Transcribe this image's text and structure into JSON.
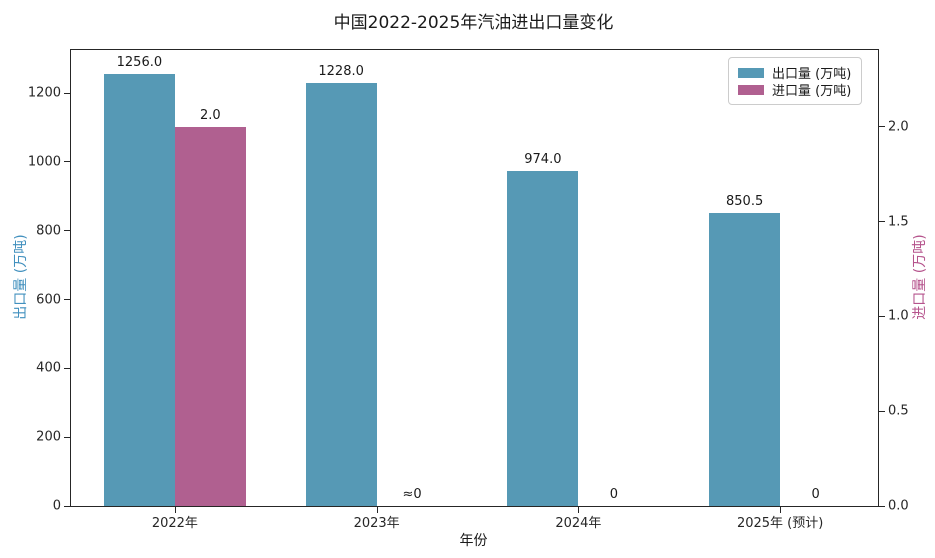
{
  "chart_data": {
    "type": "bar",
    "title": "中国2022-2025年汽油进出口量变化",
    "xlabel": "年份",
    "categories": [
      "2022年",
      "2023年",
      "2024年",
      "2025年 (预计)"
    ],
    "left_axis": {
      "label": "出口量 (万吨)",
      "color": "#4190BE",
      "ticks": [
        0,
        200,
        400,
        600,
        800,
        1000,
        1200
      ],
      "ylim": [
        0,
        1325
      ]
    },
    "right_axis": {
      "label": "进口量 (万吨)",
      "color": "#B5538C",
      "tick_labels": [
        "0.0",
        "0.5",
        "1.0",
        "1.5",
        "2.0"
      ],
      "tick_values": [
        0,
        0.5,
        1.0,
        1.5,
        2.0
      ],
      "ylim": [
        0,
        2.406
      ]
    },
    "series": [
      {
        "name": "出口量 (万吨)",
        "axis": "left",
        "color": "#5699B5",
        "values": [
          1256.0,
          1228.0,
          974.0,
          850.5
        ],
        "labels": [
          "1256.0",
          "1228.0",
          "974.0",
          "850.5"
        ]
      },
      {
        "name": "进口量 (万吨)",
        "axis": "right",
        "color": "#B06090",
        "values": [
          2.0,
          0,
          0,
          0
        ],
        "labels": [
          "2.0",
          "≈0",
          "0",
          "0"
        ]
      }
    ],
    "legend": {
      "position": "upper right",
      "items": [
        "出口量 (万吨)",
        "进口量 (万吨)"
      ]
    },
    "grid": false
  }
}
